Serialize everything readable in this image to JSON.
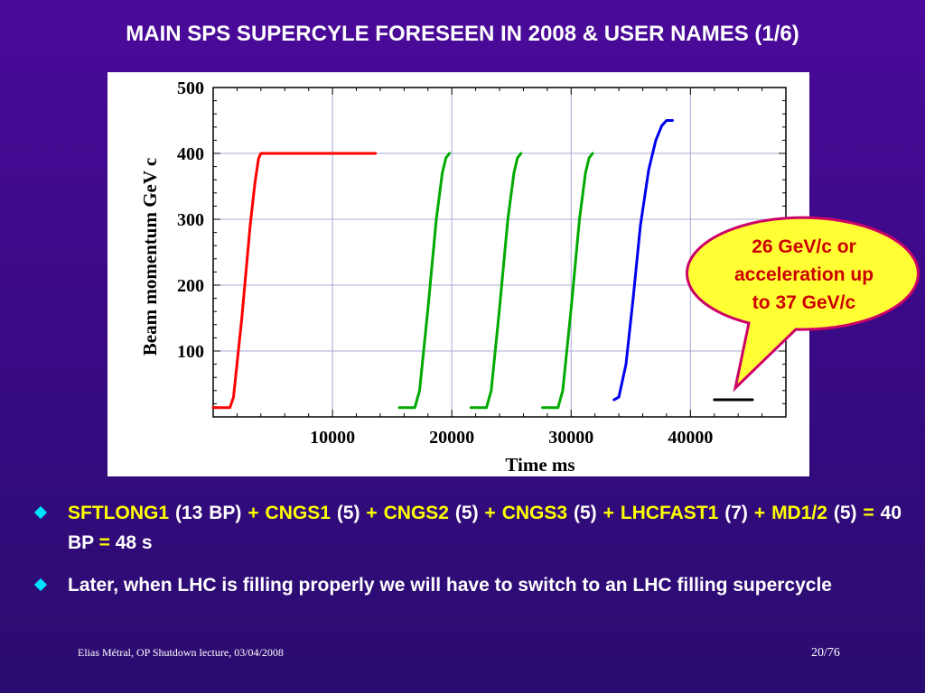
{
  "slide": {
    "title": "MAIN SPS SUPERCYLE FORESEEN IN 2008 & USER NAMES (1/6)",
    "footer_left": "Elias Métral, OP Shutdown lecture, 03/04/2008",
    "page_number": "20/76"
  },
  "callout": {
    "lines": [
      "26 GeV/c or",
      "acceleration up",
      "to 37 GeV/c"
    ],
    "fill_color": "#ffff33",
    "border_color": "#cc0066",
    "text_color": "#cc0000"
  },
  "bullets": [
    {
      "segments": [
        {
          "text": "SFTLONG1",
          "color": "yellow"
        },
        {
          "text": " (13 BP) ",
          "color": "white"
        },
        {
          "text": "+",
          "color": "yellow"
        },
        {
          "text": " ",
          "color": "white"
        },
        {
          "text": "CNGS1",
          "color": "yellow"
        },
        {
          "text": " (5) ",
          "color": "white"
        },
        {
          "text": "+",
          "color": "yellow"
        },
        {
          "text": " ",
          "color": "white"
        },
        {
          "text": "CNGS2",
          "color": "yellow"
        },
        {
          "text": " (5) ",
          "color": "white"
        },
        {
          "text": "+",
          "color": "yellow"
        },
        {
          "text": " ",
          "color": "white"
        },
        {
          "text": "CNGS3",
          "color": "yellow"
        },
        {
          "text": " (5) ",
          "color": "white"
        },
        {
          "text": "+",
          "color": "yellow"
        },
        {
          "text": " ",
          "color": "white"
        },
        {
          "text": "LHCFAST1",
          "color": "yellow"
        },
        {
          "text": " (7) ",
          "color": "white"
        },
        {
          "text": "+",
          "color": "yellow"
        },
        {
          "text": " ",
          "color": "white"
        },
        {
          "text": "MD1/2",
          "color": "yellow"
        },
        {
          "text": " (5) ",
          "color": "white"
        },
        {
          "text": "=",
          "color": "yellow"
        },
        {
          "text": " 40 BP ",
          "color": "white"
        },
        {
          "text": "=",
          "color": "yellow"
        },
        {
          "text": " 48 s",
          "color": "white"
        }
      ]
    },
    {
      "segments": [
        {
          "text": "Later, when LHC is filling properly we will have to switch to an LHC filling supercycle",
          "color": "white"
        }
      ]
    }
  ],
  "chart_data": {
    "type": "line",
    "xlabel": "Time   ms",
    "ylabel": "Beam momentum   GeV c",
    "xlim": [
      0,
      48000
    ],
    "ylim": [
      0,
      500
    ],
    "x_ticks": [
      10000,
      20000,
      30000,
      40000
    ],
    "y_ticks": [
      100,
      200,
      300,
      400,
      500
    ],
    "grid": true,
    "series": [
      {
        "color": "#ff0000",
        "x": [
          0,
          1400,
          1700,
          2400,
          3100,
          3500,
          3800,
          4000,
          13600
        ],
        "y": [
          14,
          14,
          30,
          150,
          290,
          355,
          392,
          400,
          400
        ]
      },
      {
        "color": "#00aa00",
        "x": [
          15600,
          16900,
          17300,
          18000,
          18700,
          19200,
          19500,
          19800
        ],
        "y": [
          14,
          14,
          40,
          165,
          300,
          370,
          393,
          400
        ]
      },
      {
        "color": "#00aa00",
        "x": [
          21600,
          22900,
          23300,
          24000,
          24700,
          25200,
          25500,
          25800
        ],
        "y": [
          14,
          14,
          40,
          165,
          300,
          370,
          393,
          400
        ]
      },
      {
        "color": "#00aa00",
        "x": [
          27600,
          28900,
          29300,
          30000,
          30700,
          31200,
          31500,
          31800
        ],
        "y": [
          14,
          14,
          40,
          165,
          300,
          370,
          393,
          400
        ]
      },
      {
        "color": "#0000ee",
        "x": [
          33600,
          34000,
          34600,
          35200,
          35800,
          36500,
          37100,
          37600,
          38000,
          38500
        ],
        "y": [
          26,
          30,
          80,
          180,
          290,
          375,
          420,
          442,
          450,
          450
        ]
      },
      {
        "color": "#000000",
        "x": [
          42000,
          45200
        ],
        "y": [
          26,
          26
        ]
      }
    ]
  }
}
